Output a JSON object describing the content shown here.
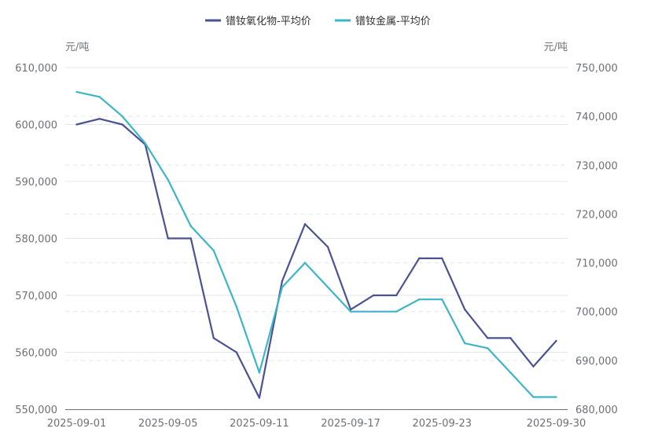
{
  "chart_data": {
    "type": "line",
    "title": "",
    "legend_position": "top-center",
    "left_axis": {
      "unit_label": "元/吨",
      "ylim": [
        550000,
        610000
      ],
      "ticks": [
        "550,000",
        "560,000",
        "570,000",
        "580,000",
        "590,000",
        "600,000",
        "610,000"
      ],
      "tick_values": [
        550000,
        560000,
        570000,
        580000,
        590000,
        600000,
        610000
      ]
    },
    "right_axis": {
      "unit_label": "元/吨",
      "ylim": [
        680000,
        750000
      ],
      "ticks": [
        "680,000",
        "690,000",
        "700,000",
        "710,000",
        "720,000",
        "730,000",
        "740,000",
        "750,000"
      ],
      "tick_values": [
        680000,
        690000,
        700000,
        710000,
        720000,
        730000,
        740000,
        750000
      ]
    },
    "categories": [
      "2025-09-01",
      "2025-09-02",
      "2025-09-03",
      "2025-09-04",
      "2025-09-05",
      "2025-09-08",
      "2025-09-09",
      "2025-09-10",
      "2025-09-11",
      "2025-09-12",
      "2025-09-15",
      "2025-09-16",
      "2025-09-17",
      "2025-09-18",
      "2025-09-19",
      "2025-09-22",
      "2025-09-23",
      "2025-09-24",
      "2025-09-25",
      "2025-09-26",
      "2025-09-29",
      "2025-09-30"
    ],
    "x_tick_labels": [
      {
        "index": 0,
        "label": "2025-09-01"
      },
      {
        "index": 4,
        "label": "2025-09-05"
      },
      {
        "index": 8,
        "label": "2025-09-11"
      },
      {
        "index": 12,
        "label": "2025-09-17"
      },
      {
        "index": 16,
        "label": "2025-09-23"
      },
      {
        "index": 21,
        "label": "2025-09-30"
      }
    ],
    "series": [
      {
        "name": "镨钕氧化物-平均价",
        "axis": "left",
        "color": "#4a5294",
        "values": [
          600000,
          601000,
          600000,
          596500,
          580000,
          580000,
          562500,
          560000,
          552000,
          572500,
          582500,
          578500,
          567500,
          570000,
          570000,
          576500,
          576500,
          567500,
          562500,
          562500,
          557500,
          562000
        ]
      },
      {
        "name": "镨钕金属-平均价",
        "axis": "right",
        "color": "#3db5c8",
        "values": [
          745000,
          744000,
          740000,
          734500,
          727000,
          717500,
          712500,
          701000,
          687500,
          705000,
          710000,
          705000,
          700000,
          700000,
          700000,
          702500,
          702500,
          693500,
          692500,
          687500,
          682500,
          682500
        ]
      }
    ]
  }
}
